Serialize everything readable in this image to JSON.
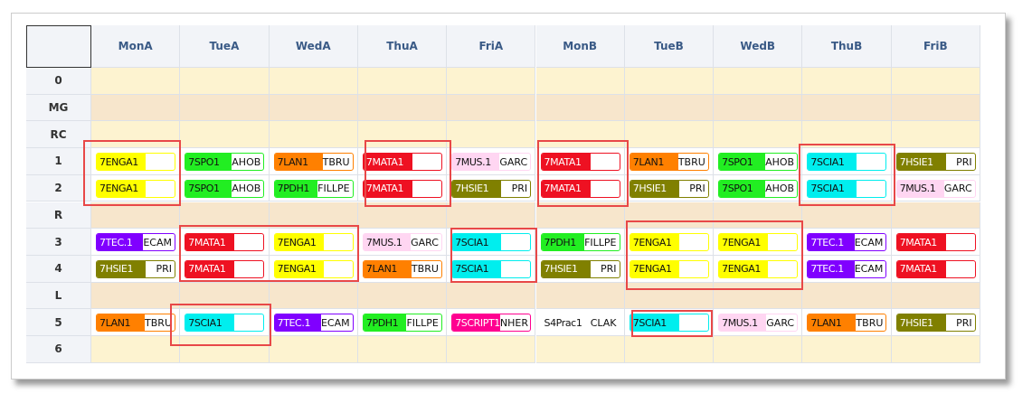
{
  "columns": [
    "MonA",
    "TueA",
    "WedA",
    "ThuA",
    "FriA",
    "MonB",
    "TueB",
    "WedB",
    "ThuB",
    "FriB"
  ],
  "rows": [
    {
      "label": "0"
    },
    {
      "label": "MG"
    },
    {
      "label": "RC"
    },
    {
      "label": "1",
      "cells": [
        {
          "subject": "7ENGA1",
          "color": "#ffff00"
        },
        {
          "subject": "7SPO1",
          "teacher": "AHOB",
          "color": "#22ee22"
        },
        {
          "subject": "7LAN1",
          "teacher": "TBRU",
          "color": "#ff8000"
        },
        {
          "subject": "7MATA1",
          "color": "#ee1122"
        },
        {
          "subject": "7MUS.1",
          "teacher": "GARC",
          "color": "#ffd6f2"
        },
        {
          "subject": "7MATA1",
          "color": "#ee1122"
        },
        {
          "subject": "7LAN1",
          "teacher": "TBRU",
          "color": "#ff8000"
        },
        {
          "subject": "7SPO1",
          "teacher": "AHOB",
          "color": "#22ee22"
        },
        {
          "subject": "7SCIA1",
          "color": "#00eeee"
        },
        {
          "subject": "7HSIE1",
          "teacher": "PRI",
          "color": "#808000"
        }
      ]
    },
    {
      "label": "2",
      "cells": [
        {
          "subject": "7ENGA1",
          "color": "#ffff00"
        },
        {
          "subject": "7SPO1",
          "teacher": "AHOB",
          "color": "#22ee22"
        },
        {
          "subject": "7PDH1",
          "teacher": "FILLPE",
          "color": "#22ee22"
        },
        {
          "subject": "7MATA1",
          "color": "#ee1122"
        },
        {
          "subject": "7HSIE1",
          "teacher": "PRI",
          "color": "#808000"
        },
        {
          "subject": "7MATA1",
          "color": "#ee1122"
        },
        {
          "subject": "7HSIE1",
          "teacher": "PRI",
          "color": "#808000"
        },
        {
          "subject": "7SPO1",
          "teacher": "AHOB",
          "color": "#22ee22"
        },
        {
          "subject": "7SCIA1",
          "color": "#00eeee"
        },
        {
          "subject": "7MUS.1",
          "teacher": "GARC",
          "color": "#ffd6f2"
        }
      ]
    },
    {
      "label": "R"
    },
    {
      "label": "3",
      "cells": [
        {
          "subject": "7TEC.1",
          "teacher": "ECAM",
          "color": "#8000ff"
        },
        {
          "subject": "7MATA1",
          "color": "#ee1122"
        },
        {
          "subject": "7ENGA1",
          "color": "#ffff00"
        },
        {
          "subject": "7MUS.1",
          "teacher": "GARC",
          "color": "#ffd6f2"
        },
        {
          "subject": "7SCIA1",
          "color": "#00eeee"
        },
        {
          "subject": "7PDH1",
          "teacher": "FILLPE",
          "color": "#22ee22"
        },
        {
          "subject": "7ENGA1",
          "color": "#ffff00"
        },
        {
          "subject": "7ENGA1",
          "color": "#ffff00"
        },
        {
          "subject": "7TEC.1",
          "teacher": "ECAM",
          "color": "#8000ff"
        },
        {
          "subject": "7MATA1",
          "color": "#ee1122"
        }
      ]
    },
    {
      "label": "4",
      "cells": [
        {
          "subject": "7HSIE1",
          "teacher": "PRI",
          "color": "#808000"
        },
        {
          "subject": "7MATA1",
          "color": "#ee1122"
        },
        {
          "subject": "7ENGA1",
          "color": "#ffff00"
        },
        {
          "subject": "7LAN1",
          "teacher": "TBRU",
          "color": "#ff8000"
        },
        {
          "subject": "7SCIA1",
          "color": "#00eeee"
        },
        {
          "subject": "7HSIE1",
          "teacher": "PRI",
          "color": "#808000"
        },
        {
          "subject": "7ENGA1",
          "color": "#ffff00"
        },
        {
          "subject": "7ENGA1",
          "color": "#ffff00"
        },
        {
          "subject": "7TEC.1",
          "teacher": "ECAM",
          "color": "#8000ff"
        },
        {
          "subject": "7MATA1",
          "color": "#ee1122"
        }
      ]
    },
    {
      "label": "L"
    },
    {
      "label": "5",
      "cells": [
        {
          "subject": "7LAN1",
          "teacher": "TBRU",
          "color": "#ff8000"
        },
        {
          "subject": "7SCIA1",
          "color": "#00eeee"
        },
        {
          "subject": "7TEC.1",
          "teacher": "ECAM",
          "color": "#8000ff"
        },
        {
          "subject": "7PDH1",
          "teacher": "FILLPE",
          "color": "#22ee22"
        },
        {
          "subject": "7SCRIPT1",
          "teacher": "NHER",
          "color": "#ff0090"
        },
        {
          "subject": "S4Prac1",
          "teacher": "CLAK"
        },
        {
          "subject": "7SCIA1",
          "color": "#00eeee"
        },
        {
          "subject": "7MUS.1",
          "teacher": "GARC",
          "color": "#ffd6f2"
        },
        {
          "subject": "7LAN1",
          "teacher": "TBRU",
          "color": "#ff8000"
        },
        {
          "subject": "7HSIE1",
          "teacher": "PRI",
          "color": "#808000"
        }
      ]
    },
    {
      "label": "6"
    }
  ]
}
